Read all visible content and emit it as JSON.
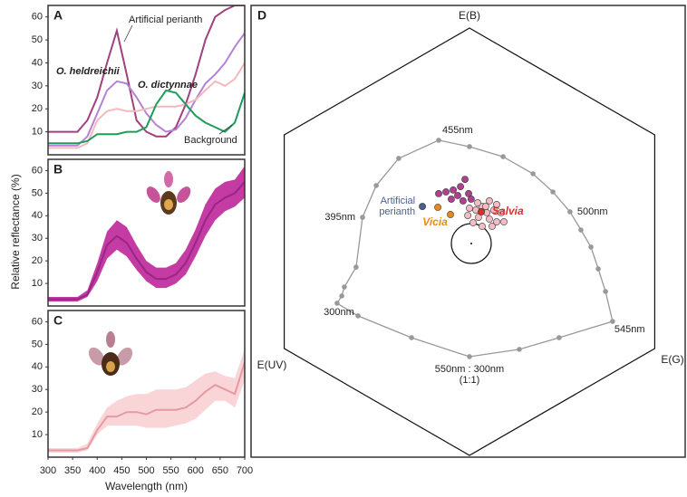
{
  "chart_data": [
    {
      "type": "line",
      "panel_label": "A",
      "x": [
        300,
        320,
        340,
        360,
        380,
        400,
        420,
        440,
        460,
        480,
        500,
        520,
        540,
        560,
        580,
        600,
        620,
        640,
        660,
        680,
        700
      ],
      "xlim": [
        300,
        700
      ],
      "ylim": [
        0,
        65
      ],
      "yticks": [
        10,
        20,
        30,
        40,
        50,
        60
      ],
      "series": [
        {
          "name": "Artificial perianth",
          "color": "#a0407f",
          "values": [
            10,
            10,
            10,
            10,
            15,
            25,
            40,
            54,
            35,
            15,
            10,
            8,
            8,
            12,
            22,
            35,
            50,
            60,
            63,
            65,
            65
          ]
        },
        {
          "name": "O. heldreichii",
          "color": "#b583d3",
          "values": [
            4,
            4,
            4,
            4,
            8,
            18,
            28,
            32,
            31,
            25,
            18,
            13,
            10,
            11,
            16,
            24,
            31,
            35,
            40,
            47,
            53
          ]
        },
        {
          "name": "O. dictynnae",
          "color": "#f6b8bd",
          "values": [
            3,
            3,
            3,
            3,
            5,
            15,
            19,
            20,
            19,
            19,
            20,
            21,
            21,
            21,
            22,
            24,
            28,
            32,
            30,
            33,
            40
          ]
        },
        {
          "name": "Background",
          "color": "#1d9c5b",
          "values": [
            5,
            5,
            5,
            5,
            6,
            9,
            9,
            9,
            10,
            10,
            12,
            22,
            28,
            27,
            22,
            17,
            14,
            12,
            10,
            14,
            27
          ]
        }
      ]
    },
    {
      "type": "line",
      "panel_label": "B",
      "ylabel": "Relative reflectance (%)",
      "x": [
        300,
        320,
        340,
        360,
        380,
        400,
        420,
        440,
        460,
        480,
        500,
        520,
        540,
        560,
        580,
        600,
        620,
        640,
        660,
        680,
        700
      ],
      "xlim": [
        300,
        700
      ],
      "ylim": [
        0,
        65
      ],
      "yticks": [
        10,
        20,
        30,
        40,
        50,
        60
      ],
      "series": [
        {
          "color": "#9a2585",
          "band_color": "#c43ba3",
          "values": [
            3,
            3,
            3,
            3,
            5,
            15,
            27,
            31,
            28,
            21,
            15,
            12,
            12,
            14,
            19,
            28,
            38,
            45,
            48,
            50,
            55
          ],
          "lower": [
            2,
            2,
            2,
            2,
            4,
            11,
            21,
            25,
            22,
            16,
            11,
            8,
            8,
            10,
            14,
            22,
            31,
            38,
            42,
            44,
            48
          ],
          "upper": [
            4,
            4,
            4,
            4,
            7,
            19,
            33,
            38,
            35,
            27,
            20,
            17,
            17,
            19,
            25,
            34,
            45,
            52,
            55,
            56,
            62
          ]
        }
      ]
    },
    {
      "type": "line",
      "panel_label": "C",
      "xlabel": "Wavelength (nm)",
      "x": [
        300,
        320,
        340,
        360,
        380,
        400,
        420,
        440,
        460,
        480,
        500,
        520,
        540,
        560,
        580,
        600,
        620,
        640,
        660,
        680,
        700
      ],
      "xlim": [
        300,
        700
      ],
      "xticks": [
        300,
        350,
        400,
        450,
        500,
        550,
        600,
        650,
        700
      ],
      "ylim": [
        0,
        65
      ],
      "yticks": [
        10,
        20,
        30,
        40,
        50,
        60
      ],
      "series": [
        {
          "color": "#e59aa3",
          "band_color": "#f9d5d8",
          "values": [
            3,
            3,
            3,
            3,
            4,
            12,
            18,
            18,
            20,
            20,
            19,
            21,
            21,
            21,
            22,
            25,
            29,
            32,
            30,
            28,
            42
          ],
          "lower": [
            2,
            2,
            2,
            2,
            3,
            10,
            14,
            14,
            14,
            14,
            13,
            13,
            13,
            14,
            15,
            17,
            21,
            25,
            25,
            22,
            34
          ],
          "upper": [
            4,
            4,
            4,
            4,
            6,
            15,
            22,
            25,
            27,
            28,
            28,
            30,
            30,
            30,
            31,
            34,
            37,
            38,
            36,
            35,
            48
          ]
        }
      ]
    },
    {
      "type": "hexagon",
      "panel_label": "D",
      "vertex_labels": [
        "E(B)",
        "E(UV)",
        "E(G)"
      ],
      "xlim": [
        -1,
        1
      ],
      "ylim": [
        -1,
        1
      ],
      "locus": {
        "color": "#999999",
        "x": [
          -0.144,
          0.0,
          0.157,
          0.297,
          0.39,
          0.47,
          0.521,
          0.568,
          0.602,
          0.636,
          0.669,
          0.419,
          0.233,
          0.0,
          -0.271,
          -0.521,
          -0.619,
          -0.597,
          -0.585,
          -0.53,
          -0.5,
          -0.436,
          -0.331
        ],
        "y": [
          0.475,
          0.445,
          0.398,
          0.318,
          0.233,
          0.14,
          0.055,
          -0.025,
          -0.127,
          -0.233,
          -0.373,
          -0.449,
          -0.504,
          -0.538,
          -0.449,
          -0.347,
          -0.288,
          -0.254,
          -0.212,
          -0.119,
          0.114,
          0.263,
          0.39
        ]
      },
      "locus_labels": [
        "455nm",
        "500nm",
        "545nm",
        "550nm : 300nm",
        "(1:1)",
        "395nm",
        "300nm"
      ],
      "series": [
        {
          "color": "#b0408f",
          "x": [
            -0.021,
            -0.144,
            -0.11,
            -0.076,
            -0.055,
            -0.03,
            -0.085,
            -0.004,
            -0.042,
            0.008
          ],
          "y": [
            0.292,
            0.225,
            0.233,
            0.242,
            0.216,
            0.191,
            0.199,
            0.225,
            0.258,
            0.199
          ]
        },
        {
          "color": "#f4bcc4",
          "x": [
            0.093,
            0.127,
            0.059,
            0.03,
            0.081,
            0.114,
            0.148,
            0.042,
            0.093,
            0.127,
            0.161,
            -0.008,
            0.017,
            0.059,
            0.106,
            0.0,
            0.076,
            0.038
          ],
          "y": [
            0.191,
            0.174,
            0.165,
            0.148,
            0.136,
            0.148,
            0.136,
            0.114,
            0.106,
            0.093,
            0.093,
            0.123,
            0.089,
            0.072,
            0.072,
            0.157,
            0.165,
            0.182
          ]
        },
        {
          "name": "Salvia",
          "color": "#d9302a",
          "x": [
            0.055
          ],
          "y": [
            0.14
          ]
        },
        {
          "name": "Vicia",
          "color": "#e8891a",
          "x": [
            -0.148,
            -0.089
          ],
          "y": [
            0.161,
            0.127
          ]
        },
        {
          "name": "Artificial perianth",
          "color": "#4a5f8f",
          "x": [
            -0.22
          ],
          "y": [
            0.165
          ]
        }
      ]
    }
  ]
}
